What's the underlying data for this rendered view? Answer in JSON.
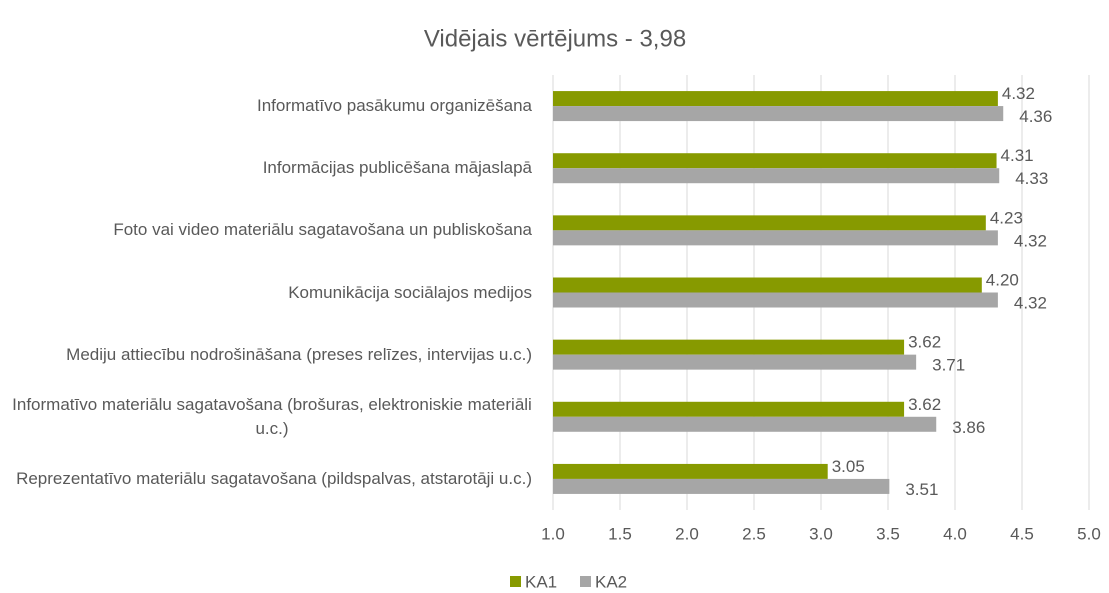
{
  "chart_data": {
    "type": "bar",
    "orientation": "horizontal",
    "title": "Vidējais vērtējums - 3,98",
    "categories": [
      "Informatīvo pasākumu organizēšana",
      "Informācijas publicēšana mājaslapā",
      "Foto vai video materiālu sagatavošana un publiskošana",
      "Komunikācija sociālajos medijos",
      "Mediju attiecību nodrošināšana (preses relīzes, intervijas u.c.)",
      "Informatīvo materiālu sagatavošana (brošuras, elektroniskie materiāli u.c.)",
      "Reprezentatīvo materiālu sagatavošana (pildspalvas, atstarotāji u.c.)"
    ],
    "series": [
      {
        "name": "KA1",
        "color": "#879a00",
        "values": [
          4.32,
          4.31,
          4.23,
          4.2,
          3.62,
          3.62,
          3.05
        ],
        "value_labels": [
          "4.32",
          "4.31",
          "4.23",
          "4.20",
          "3.62",
          "3.62",
          "3.05"
        ]
      },
      {
        "name": "KA2",
        "color": "#a6a6a6",
        "values": [
          4.36,
          4.33,
          4.32,
          4.32,
          3.71,
          3.86,
          3.51
        ],
        "value_labels": [
          "4.36",
          "4.33",
          "4.32",
          "4.32",
          "3.71",
          "3.86",
          "3.51"
        ]
      }
    ],
    "xlim": [
      1.0,
      5.0
    ],
    "xticks": [
      {
        "value": 1,
        "label": "1.0"
      },
      {
        "value": 1.5,
        "label": "1.5"
      },
      {
        "value": 2,
        "label": "2.0"
      },
      {
        "value": 2.5,
        "label": "2.5"
      },
      {
        "value": 3,
        "label": "3.0"
      },
      {
        "value": 3.5,
        "label": "3.5"
      },
      {
        "value": 4,
        "label": "4.0"
      },
      {
        "value": 4.5,
        "label": "4.5"
      },
      {
        "value": 5,
        "label": "5.0"
      }
    ],
    "grid": true,
    "legend": "bottom"
  }
}
